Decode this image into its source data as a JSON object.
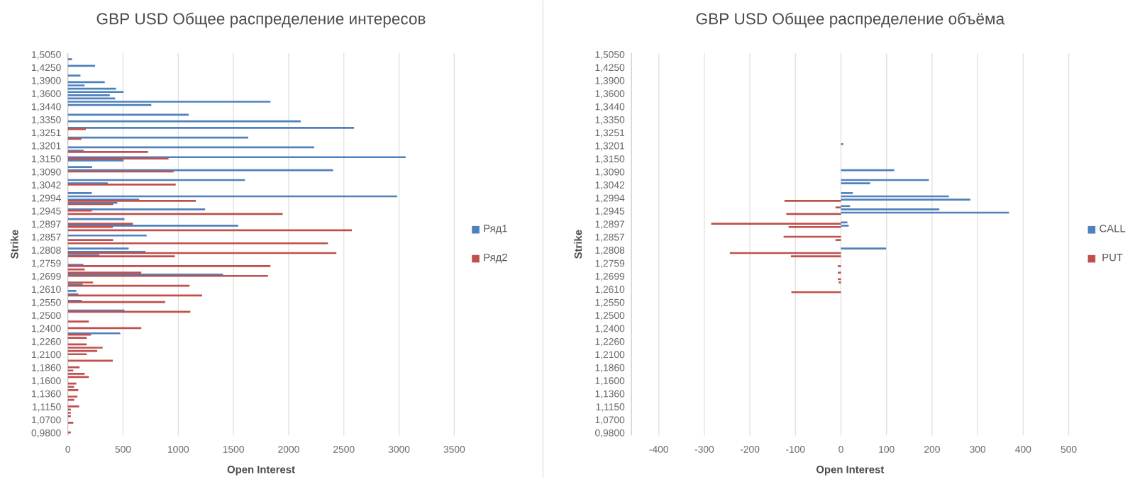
{
  "chart_data": [
    {
      "type": "bar",
      "orientation": "horizontal",
      "title": "GBP USD Общее распределение интересов",
      "xlabel": "Open Interest",
      "ylabel": "Strike",
      "categories": [
        "1,5050",
        null,
        null,
        null,
        "1,4250",
        null,
        null,
        null,
        "1,3900",
        null,
        null,
        null,
        "1,3600",
        null,
        null,
        null,
        "1,3440",
        null,
        null,
        null,
        "1,3350",
        null,
        null,
        null,
        "1,3251",
        null,
        null,
        null,
        "1,3201",
        null,
        null,
        null,
        "1,3150",
        null,
        null,
        null,
        "1,3090",
        null,
        null,
        null,
        "1,3042",
        null,
        null,
        null,
        "1,2994",
        null,
        null,
        null,
        "1,2945",
        null,
        null,
        null,
        "1,2897",
        null,
        null,
        null,
        "1,2857",
        null,
        null,
        null,
        "1,2808",
        null,
        null,
        null,
        "1,2759",
        null,
        null,
        null,
        "1,2699",
        null,
        null,
        null,
        "1,2610",
        null,
        null,
        null,
        "1,2550",
        null,
        null,
        null,
        "1,2500",
        null,
        null,
        null,
        "1,2400",
        null,
        null,
        null,
        "1,2260",
        null,
        null,
        null,
        "1,2100",
        null,
        null,
        null,
        "1,1860",
        null,
        null,
        null,
        "1,1600",
        null,
        null,
        null,
        "1,1360",
        null,
        null,
        null,
        "1,1150",
        null,
        null,
        null,
        "1,0700",
        null,
        null,
        null,
        "0,9800"
      ],
      "series": [
        {
          "name": "Ряд1",
          "color": "#4f81bd",
          "values": [
            null,
            38,
            null,
            247,
            null,
            null,
            114,
            null,
            334,
            152,
            437,
            505,
            380,
            429,
            1835,
            756,
            null,
            null,
            1094,
            null,
            2109,
            null,
            2592,
            null,
            null,
            1634,
            null,
            null,
            2231,
            144,
            null,
            3059,
            505,
            null,
            220,
            2402,
            null,
            null,
            1604,
            361,
            null,
            null,
            217,
            2983,
            646,
            448,
            null,
            1243,
            null,
            null,
            513,
            null,
            1543,
            null,
            null,
            714,
            null,
            null,
            null,
            551,
            703,
            285,
            null,
            null,
            141,
            null,
            null,
            1406,
            null,
            null,
            133,
            null,
            76,
            95,
            null,
            125,
            null,
            null,
            513,
            null,
            null,
            null,
            null,
            null,
            null,
            475,
            null,
            null,
            null,
            null,
            null,
            null,
            null,
            null,
            null,
            null,
            null,
            null,
            null,
            null,
            null,
            null,
            null,
            null,
            null,
            null,
            null,
            null,
            null,
            null,
            null,
            null,
            null,
            null,
            null,
            null,
            null
          ]
        },
        {
          "name": "Ряд2",
          "color": "#c0504d",
          "values": [
            null,
            null,
            null,
            null,
            null,
            null,
            null,
            null,
            null,
            null,
            null,
            null,
            null,
            null,
            null,
            null,
            null,
            null,
            null,
            null,
            null,
            null,
            null,
            163,
            null,
            null,
            122,
            null,
            null,
            null,
            726,
            null,
            912,
            null,
            null,
            null,
            958,
            null,
            null,
            null,
            977,
            null,
            null,
            null,
            null,
            1159,
            410,
            null,
            217,
            1946,
            null,
            null,
            589,
            407,
            2573,
            null,
            null,
            410,
            2356,
            null,
            null,
            2432,
            969,
            null,
            null,
            1835,
            152,
            665,
            1813,
            null,
            228,
            1102,
            null,
            null,
            1216,
            null,
            882,
            null,
            null,
            1110,
            null,
            null,
            190,
            null,
            665,
            null,
            209,
            171,
            null,
            171,
            315,
            266,
            171,
            null,
            407,
            null,
            106,
            49,
            152,
            190,
            null,
            76,
            57,
            95,
            null,
            87,
            57,
            null,
            103,
            27,
            27,
            27,
            null,
            49,
            null,
            null,
            27
          ]
        }
      ],
      "xlim": [
        0,
        3500
      ],
      "xticks": [
        0,
        500,
        1000,
        1500,
        2000,
        2500,
        3000,
        3500
      ],
      "grid": "x",
      "legend": "right"
    },
    {
      "type": "bar",
      "orientation": "horizontal",
      "title": "GBP USD Общее распределение объёма",
      "xlabel": "Open Interest",
      "ylabel": "Strike",
      "categories": [
        "1,5050",
        null,
        null,
        null,
        "1,4250",
        null,
        null,
        null,
        "1,3900",
        null,
        null,
        null,
        "1,3600",
        null,
        null,
        null,
        "1,3440",
        null,
        null,
        null,
        "1,3350",
        null,
        null,
        null,
        "1,3251",
        null,
        null,
        null,
        "1,3201",
        null,
        null,
        null,
        "1,3150",
        null,
        null,
        null,
        "1,3090",
        null,
        null,
        null,
        "1,3042",
        null,
        null,
        null,
        "1,2994",
        null,
        null,
        null,
        "1,2945",
        null,
        null,
        null,
        "1,2897",
        null,
        null,
        null,
        "1,2857",
        null,
        null,
        null,
        "1,2808",
        null,
        null,
        null,
        "1,2759",
        null,
        null,
        null,
        "1,2699",
        null,
        null,
        null,
        "1,2610",
        null,
        null,
        null,
        "1,2550",
        null,
        null,
        null,
        "1,2500",
        null,
        null,
        null,
        "1,2400",
        null,
        null,
        null,
        "1,2260",
        null,
        null,
        null,
        "1,2100",
        null,
        null,
        null,
        "1,1860",
        null,
        null,
        null,
        "1,1600",
        null,
        null,
        null,
        "1,1360",
        null,
        null,
        null,
        "1,1150",
        null,
        null,
        null,
        "1,0700",
        null,
        null,
        null,
        "0,9800"
      ],
      "series": [
        {
          "name": "CALL",
          "color": "#4f81bd",
          "values": [
            null,
            null,
            null,
            null,
            null,
            null,
            null,
            null,
            null,
            null,
            null,
            null,
            null,
            null,
            null,
            null,
            null,
            null,
            null,
            null,
            null,
            null,
            null,
            null,
            null,
            null,
            null,
            5,
            null,
            null,
            null,
            null,
            null,
            null,
            null,
            117,
            null,
            null,
            193,
            64,
            null,
            null,
            26,
            237,
            284,
            null,
            20,
            216,
            369,
            null,
            null,
            14,
            17,
            null,
            null,
            null,
            null,
            null,
            null,
            99,
            null,
            null,
            null,
            null,
            null,
            null,
            null,
            null,
            null,
            null,
            null,
            null,
            null,
            null,
            null,
            null,
            null,
            null,
            null,
            null,
            null,
            null,
            null,
            null,
            null,
            null,
            null,
            null,
            null,
            null,
            null,
            null,
            null,
            null,
            null,
            null,
            null,
            null,
            null,
            null,
            null,
            null,
            null,
            null,
            null,
            null,
            null,
            null,
            null,
            null,
            null,
            null,
            null,
            null,
            null,
            null,
            null
          ]
        },
        {
          "name": "PUT",
          "color": "#c0504d",
          "values": [
            null,
            null,
            null,
            null,
            null,
            null,
            null,
            null,
            null,
            null,
            null,
            null,
            null,
            null,
            null,
            null,
            null,
            null,
            null,
            null,
            null,
            null,
            null,
            null,
            null,
            null,
            null,
            null,
            null,
            null,
            null,
            null,
            null,
            null,
            null,
            null,
            null,
            null,
            null,
            null,
            null,
            null,
            null,
            null,
            null,
            -124,
            null,
            -12,
            null,
            -120,
            null,
            null,
            -285,
            -115,
            null,
            null,
            -126,
            -12,
            null,
            null,
            null,
            -244,
            -110,
            null,
            null,
            -7,
            null,
            -7,
            null,
            -7,
            -5,
            null,
            null,
            -109,
            null,
            null,
            null,
            null,
            null,
            null,
            null,
            null,
            null,
            null,
            null,
            null,
            null,
            null,
            null,
            null,
            null,
            null,
            null,
            null,
            null,
            null,
            null,
            null,
            null,
            null,
            null,
            null,
            null,
            null,
            null,
            null,
            null,
            null,
            null,
            null,
            null,
            null,
            null,
            null,
            null,
            null,
            null
          ]
        }
      ],
      "xlim": [
        -460,
        500
      ],
      "xticks": [
        -400,
        -300,
        -200,
        -100,
        0,
        100,
        200,
        300,
        400,
        500
      ],
      "grid": "x",
      "legend": "right"
    }
  ]
}
